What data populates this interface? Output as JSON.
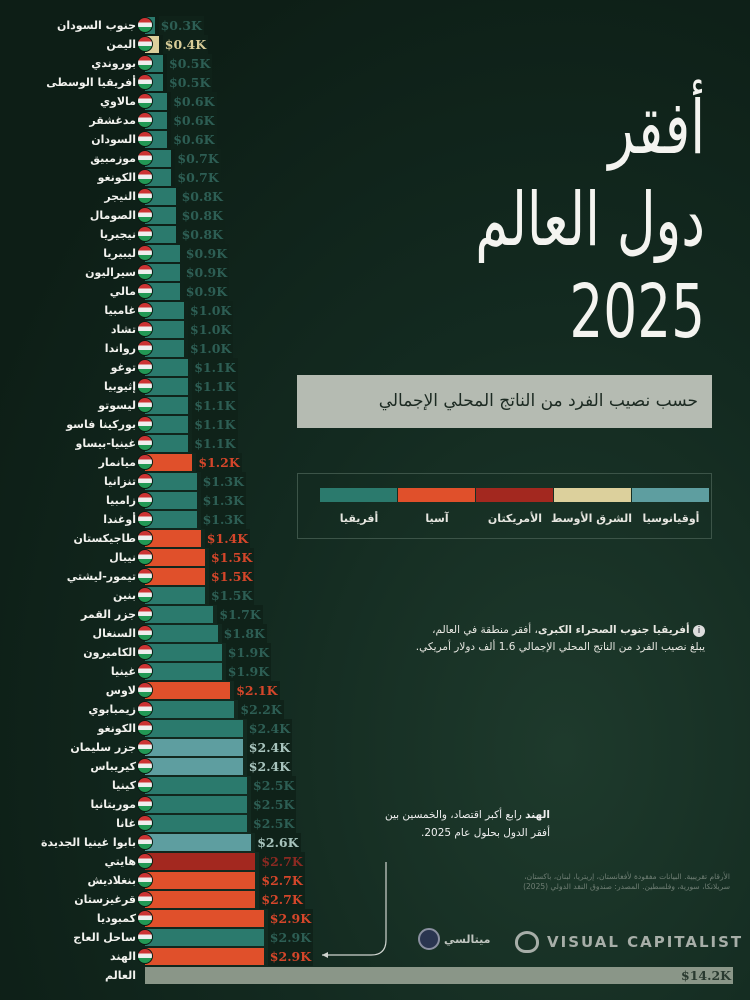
{
  "title_lines": [
    "أفقر",
    "دول العالم",
    "2025"
  ],
  "subtitle": "حسب نصيب الفرد من الناتج المحلي الإجمالي",
  "legend": [
    {
      "key": "oceania",
      "label": "أوقيانوسيا"
    },
    {
      "key": "middle_east",
      "label": "الشرق الأوسط"
    },
    {
      "key": "americas",
      "label": "الأمريكتان"
    },
    {
      "key": "asia",
      "label": "آسيا"
    },
    {
      "key": "africa",
      "label": "أفريقيا"
    }
  ],
  "colors": {
    "africa": "#2b7a6d",
    "asia": "#e0502b",
    "americas": "#a3281f",
    "middle_east": "#dcd09c",
    "oceania": "#5e9ea0",
    "world": "#8a9688",
    "background": "#0f2219"
  },
  "note": {
    "bold": "أفريقيا جنوب الصحراء الكبرى",
    "rest": "، أفقر منطقة في العالم،",
    "line2": "يبلغ نصيب الفرد من الناتج المحلي الإجمالي 1.6 ألف دولار أمريكي."
  },
  "india_note": {
    "bold": "الهند",
    "rest": " رابع أكبر اقتصاد، والخمسين بين أفقر الدول بحلول عام 2025."
  },
  "source": "الأرقام تقريبية. البيانات مفقودة لأفغانستان، إريتريا، لبنان، باكستان، سريلانكا، سورية، وفلسطين. المصدر: صندوق النقد الدولي (2025)",
  "logos": {
    "visual_capitalist": "VISUAL CAPITALIST",
    "metalsy": "ميتالسي"
  },
  "chart_data": {
    "type": "bar",
    "orientation": "horizontal",
    "unit": "USD thousands (GDP per capita)",
    "rows": [
      {
        "name": "جنوب السودان",
        "value": 0.3,
        "label": "$0.3K",
        "region": "africa"
      },
      {
        "name": "اليمن",
        "value": 0.4,
        "label": "$0.4K",
        "region": "middle_east"
      },
      {
        "name": "بوروندي",
        "value": 0.5,
        "label": "$0.5K",
        "region": "africa"
      },
      {
        "name": "أفريقيا الوسطى",
        "value": 0.5,
        "label": "$0.5K",
        "region": "africa"
      },
      {
        "name": "مالاوي",
        "value": 0.6,
        "label": "$0.6K",
        "region": "africa"
      },
      {
        "name": "مدغشقر",
        "value": 0.6,
        "label": "$0.6K",
        "region": "africa"
      },
      {
        "name": "السودان",
        "value": 0.6,
        "label": "$0.6K",
        "region": "africa"
      },
      {
        "name": "موزمبيق",
        "value": 0.7,
        "label": "$0.7K",
        "region": "africa"
      },
      {
        "name": "الكونغو",
        "value": 0.7,
        "label": "$0.7K",
        "region": "africa"
      },
      {
        "name": "النيجر",
        "value": 0.8,
        "label": "$0.8K",
        "region": "africa"
      },
      {
        "name": "الصومال",
        "value": 0.8,
        "label": "$0.8K",
        "region": "africa"
      },
      {
        "name": "نيجيريا",
        "value": 0.8,
        "label": "$0.8K",
        "region": "africa"
      },
      {
        "name": "ليبيريا",
        "value": 0.9,
        "label": "$0.9K",
        "region": "africa"
      },
      {
        "name": "سيراليون",
        "value": 0.9,
        "label": "$0.9K",
        "region": "africa"
      },
      {
        "name": "مالي",
        "value": 0.9,
        "label": "$0.9K",
        "region": "africa"
      },
      {
        "name": "غامبيا",
        "value": 1.0,
        "label": "$1.0K",
        "region": "africa"
      },
      {
        "name": "تشاد",
        "value": 1.0,
        "label": "$1.0K",
        "region": "africa"
      },
      {
        "name": "رواندا",
        "value": 1.0,
        "label": "$1.0K",
        "region": "africa"
      },
      {
        "name": "توغو",
        "value": 1.1,
        "label": "$1.1K",
        "region": "africa"
      },
      {
        "name": "إثيوبيا",
        "value": 1.1,
        "label": "$1.1K",
        "region": "africa"
      },
      {
        "name": "ليسوتو",
        "value": 1.1,
        "label": "$1.1K",
        "region": "africa"
      },
      {
        "name": "بوركينا فاسو",
        "value": 1.1,
        "label": "$1.1K",
        "region": "africa"
      },
      {
        "name": "غينيا-بيساو",
        "value": 1.1,
        "label": "$1.1K",
        "region": "africa"
      },
      {
        "name": "ميانمار",
        "value": 1.2,
        "label": "$1.2K",
        "region": "asia"
      },
      {
        "name": "تنزانيا",
        "value": 1.3,
        "label": "$1.3K",
        "region": "africa"
      },
      {
        "name": "زامبيا",
        "value": 1.3,
        "label": "$1.3K",
        "region": "africa"
      },
      {
        "name": "أوغندا",
        "value": 1.3,
        "label": "$1.3K",
        "region": "africa"
      },
      {
        "name": "طاجيكستان",
        "value": 1.4,
        "label": "$1.4K",
        "region": "asia"
      },
      {
        "name": "نيبال",
        "value": 1.5,
        "label": "$1.5K",
        "region": "asia"
      },
      {
        "name": "تيمور-ليشتي",
        "value": 1.5,
        "label": "$1.5K",
        "region": "asia"
      },
      {
        "name": "بنين",
        "value": 1.5,
        "label": "$1.5K",
        "region": "africa"
      },
      {
        "name": "جزر القمر",
        "value": 1.7,
        "label": "$1.7K",
        "region": "africa"
      },
      {
        "name": "السنغال",
        "value": 1.8,
        "label": "$1.8K",
        "region": "africa"
      },
      {
        "name": "الكاميرون",
        "value": 1.9,
        "label": "$1.9K",
        "region": "africa"
      },
      {
        "name": "غينيا",
        "value": 1.9,
        "label": "$1.9K",
        "region": "africa"
      },
      {
        "name": "لاوس",
        "value": 2.1,
        "label": "$2.1K",
        "region": "asia"
      },
      {
        "name": "زيمبابوي",
        "value": 2.2,
        "label": "$2.2K",
        "region": "africa"
      },
      {
        "name": "الكونغو",
        "value": 2.4,
        "label": "$2.4K",
        "region": "africa"
      },
      {
        "name": "جزر سليمان",
        "value": 2.4,
        "label": "$2.4K",
        "region": "oceania"
      },
      {
        "name": "كيريباس",
        "value": 2.4,
        "label": "$2.4K",
        "region": "oceania"
      },
      {
        "name": "كينيا",
        "value": 2.5,
        "label": "$2.5K",
        "region": "africa"
      },
      {
        "name": "موريتانيا",
        "value": 2.5,
        "label": "$2.5K",
        "region": "africa"
      },
      {
        "name": "غانا",
        "value": 2.5,
        "label": "$2.5K",
        "region": "africa"
      },
      {
        "name": "بابوا غينيا الجديدة",
        "value": 2.6,
        "label": "$2.6K",
        "region": "oceania"
      },
      {
        "name": "هايتي",
        "value": 2.7,
        "label": "$2.7K",
        "region": "americas"
      },
      {
        "name": "بنغلاديش",
        "value": 2.7,
        "label": "$2.7K",
        "region": "asia"
      },
      {
        "name": "قرغيزستان",
        "value": 2.7,
        "label": "$2.7K",
        "region": "asia"
      },
      {
        "name": "كمبوديا",
        "value": 2.9,
        "label": "$2.9K",
        "region": "asia"
      },
      {
        "name": "ساحل العاج",
        "value": 2.9,
        "label": "$2.9K",
        "region": "africa"
      },
      {
        "name": "الهند",
        "value": 2.9,
        "label": "$2.9K",
        "region": "asia"
      },
      {
        "name": "العالم",
        "value": 14.2,
        "label": "$14.2K",
        "region": "world"
      }
    ]
  }
}
